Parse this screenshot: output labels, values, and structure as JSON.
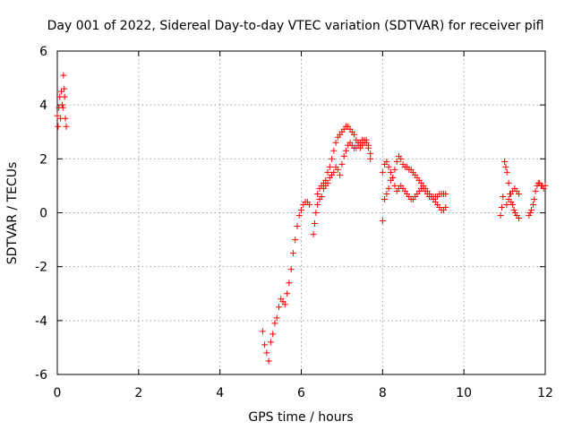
{
  "chart_data": {
    "type": "scatter",
    "title": "Day 001 of 2022, Sidereal Day-to-day VTEC variation (SDTVAR) for receiver pifl",
    "xlabel": "GPS time / hours",
    "ylabel": "SDTVAR / TECUs",
    "xlim": [
      0,
      12
    ],
    "ylim": [
      -6,
      6
    ],
    "xticks": [
      0,
      2,
      4,
      6,
      8,
      10,
      12
    ],
    "xtick_labels": [
      "0",
      "2",
      "4",
      "6",
      "8",
      "10",
      "12"
    ],
    "yticks": [
      -6,
      -4,
      -2,
      0,
      2,
      4,
      6
    ],
    "ytick_labels": [
      "-6",
      "-4",
      "-2",
      "0",
      "2",
      "4",
      "6"
    ],
    "grid": true,
    "marker": "+",
    "color": "#ff0000",
    "series": [
      {
        "name": "SDTVAR",
        "points": [
          [
            0.0,
            3.6
          ],
          [
            0.02,
            3.2
          ],
          [
            0.04,
            3.9
          ],
          [
            0.06,
            4.3
          ],
          [
            0.08,
            3.5
          ],
          [
            0.1,
            4.5
          ],
          [
            0.12,
            4.0
          ],
          [
            0.14,
            3.9
          ],
          [
            0.15,
            5.1
          ],
          [
            0.17,
            4.6
          ],
          [
            0.18,
            4.3
          ],
          [
            0.2,
            3.5
          ],
          [
            0.22,
            3.2
          ],
          [
            5.05,
            -4.4
          ],
          [
            5.1,
            -4.9
          ],
          [
            5.15,
            -5.2
          ],
          [
            5.2,
            -5.5
          ],
          [
            5.25,
            -4.8
          ],
          [
            5.3,
            -4.5
          ],
          [
            5.35,
            -4.1
          ],
          [
            5.4,
            -3.9
          ],
          [
            5.45,
            -3.5
          ],
          [
            5.5,
            -3.2
          ],
          [
            5.55,
            -3.3
          ],
          [
            5.6,
            -3.4
          ],
          [
            5.65,
            -3.0
          ],
          [
            5.7,
            -2.6
          ],
          [
            5.75,
            -2.1
          ],
          [
            5.8,
            -1.5
          ],
          [
            5.85,
            -1.0
          ],
          [
            5.9,
            -0.5
          ],
          [
            5.95,
            -0.1
          ],
          [
            6.0,
            0.1
          ],
          [
            6.05,
            0.3
          ],
          [
            6.1,
            0.4
          ],
          [
            6.15,
            0.4
          ],
          [
            6.2,
            0.3
          ],
          [
            6.3,
            -0.8
          ],
          [
            6.33,
            -0.4
          ],
          [
            6.36,
            0.0
          ],
          [
            6.4,
            0.3
          ],
          [
            6.45,
            0.5
          ],
          [
            6.5,
            0.6
          ],
          [
            6.55,
            0.9
          ],
          [
            6.6,
            1.0
          ],
          [
            6.65,
            1.1
          ],
          [
            6.7,
            1.3
          ],
          [
            6.75,
            1.4
          ],
          [
            6.8,
            1.5
          ],
          [
            6.85,
            1.7
          ],
          [
            6.9,
            1.6
          ],
          [
            6.95,
            1.4
          ],
          [
            7.0,
            1.8
          ],
          [
            7.05,
            2.1
          ],
          [
            7.1,
            2.3
          ],
          [
            7.15,
            2.5
          ],
          [
            7.2,
            2.6
          ],
          [
            7.25,
            2.5
          ],
          [
            7.3,
            2.4
          ],
          [
            7.35,
            2.4
          ],
          [
            7.4,
            2.5
          ],
          [
            7.45,
            2.4
          ],
          [
            7.5,
            2.5
          ],
          [
            7.55,
            2.6
          ],
          [
            7.6,
            2.7
          ],
          [
            7.65,
            2.5
          ],
          [
            7.7,
            2.0
          ],
          [
            6.4,
            0.7
          ],
          [
            6.45,
            0.9
          ],
          [
            6.5,
            1.0
          ],
          [
            6.55,
            1.1
          ],
          [
            6.6,
            1.2
          ],
          [
            6.65,
            1.5
          ],
          [
            6.7,
            1.7
          ],
          [
            6.75,
            2.0
          ],
          [
            6.8,
            2.3
          ],
          [
            6.85,
            2.6
          ],
          [
            6.9,
            2.8
          ],
          [
            6.95,
            2.9
          ],
          [
            7.0,
            3.0
          ],
          [
            7.05,
            3.1
          ],
          [
            7.1,
            3.2
          ],
          [
            7.15,
            3.2
          ],
          [
            7.2,
            3.1
          ],
          [
            7.25,
            3.0
          ],
          [
            7.3,
            2.9
          ],
          [
            7.35,
            2.7
          ],
          [
            7.4,
            2.6
          ],
          [
            7.45,
            2.6
          ],
          [
            7.5,
            2.7
          ],
          [
            7.55,
            2.7
          ],
          [
            7.6,
            2.6
          ],
          [
            7.65,
            2.4
          ],
          [
            7.7,
            2.2
          ],
          [
            8.0,
            -0.3
          ],
          [
            8.05,
            0.5
          ],
          [
            8.1,
            0.7
          ],
          [
            8.15,
            0.9
          ],
          [
            8.2,
            1.2
          ],
          [
            8.25,
            1.3
          ],
          [
            8.3,
            1.6
          ],
          [
            8.35,
            1.9
          ],
          [
            8.4,
            2.1
          ],
          [
            8.45,
            2.0
          ],
          [
            8.5,
            1.8
          ],
          [
            8.55,
            1.7
          ],
          [
            8.6,
            1.7
          ],
          [
            8.65,
            1.6
          ],
          [
            8.7,
            1.6
          ],
          [
            8.75,
            1.5
          ],
          [
            8.8,
            1.4
          ],
          [
            8.85,
            1.3
          ],
          [
            8.9,
            1.2
          ],
          [
            8.95,
            1.1
          ],
          [
            9.0,
            0.9
          ],
          [
            9.05,
            0.8
          ],
          [
            9.1,
            0.7
          ],
          [
            9.15,
            0.6
          ],
          [
            9.2,
            0.6
          ],
          [
            9.25,
            0.6
          ],
          [
            9.3,
            0.6
          ],
          [
            9.35,
            0.6
          ],
          [
            9.4,
            0.7
          ],
          [
            9.45,
            0.7
          ],
          [
            9.5,
            0.7
          ],
          [
            9.55,
            0.7
          ],
          [
            8.0,
            1.5
          ],
          [
            8.05,
            1.8
          ],
          [
            8.1,
            1.9
          ],
          [
            8.15,
            1.7
          ],
          [
            8.2,
            1.5
          ],
          [
            8.25,
            1.3
          ],
          [
            8.3,
            1.0
          ],
          [
            8.35,
            0.8
          ],
          [
            8.4,
            0.9
          ],
          [
            8.45,
            1.0
          ],
          [
            8.5,
            0.9
          ],
          [
            8.55,
            0.8
          ],
          [
            8.6,
            0.7
          ],
          [
            8.65,
            0.6
          ],
          [
            8.7,
            0.5
          ],
          [
            8.75,
            0.5
          ],
          [
            8.8,
            0.6
          ],
          [
            8.85,
            0.7
          ],
          [
            8.9,
            0.8
          ],
          [
            8.95,
            0.9
          ],
          [
            9.0,
            1.0
          ],
          [
            9.05,
            0.9
          ],
          [
            9.1,
            0.8
          ],
          [
            9.15,
            0.7
          ],
          [
            9.2,
            0.6
          ],
          [
            9.25,
            0.5
          ],
          [
            9.3,
            0.4
          ],
          [
            9.35,
            0.3
          ],
          [
            9.4,
            0.2
          ],
          [
            9.45,
            0.1
          ],
          [
            9.5,
            0.1
          ],
          [
            9.55,
            0.2
          ],
          [
            10.9,
            -0.1
          ],
          [
            10.93,
            0.2
          ],
          [
            10.96,
            0.6
          ],
          [
            11.0,
            1.9
          ],
          [
            11.03,
            1.7
          ],
          [
            11.06,
            1.5
          ],
          [
            11.1,
            1.1
          ],
          [
            11.13,
            0.7
          ],
          [
            11.16,
            0.4
          ],
          [
            11.2,
            0.3
          ],
          [
            11.23,
            0.1
          ],
          [
            11.26,
            0.0
          ],
          [
            11.3,
            -0.1
          ],
          [
            11.35,
            -0.2
          ],
          [
            11.05,
            0.3
          ],
          [
            11.1,
            0.5
          ],
          [
            11.15,
            0.7
          ],
          [
            11.2,
            0.8
          ],
          [
            11.25,
            0.9
          ],
          [
            11.3,
            0.8
          ],
          [
            11.35,
            0.7
          ],
          [
            11.6,
            -0.1
          ],
          [
            11.63,
            0.0
          ],
          [
            11.66,
            0.1
          ],
          [
            11.7,
            0.3
          ],
          [
            11.73,
            0.5
          ],
          [
            11.76,
            0.8
          ],
          [
            11.8,
            1.0
          ],
          [
            11.83,
            1.1
          ],
          [
            11.86,
            1.1
          ],
          [
            11.9,
            1.0
          ],
          [
            11.93,
            1.0
          ],
          [
            11.96,
            0.9
          ],
          [
            12.0,
            1.0
          ]
        ]
      }
    ]
  }
}
